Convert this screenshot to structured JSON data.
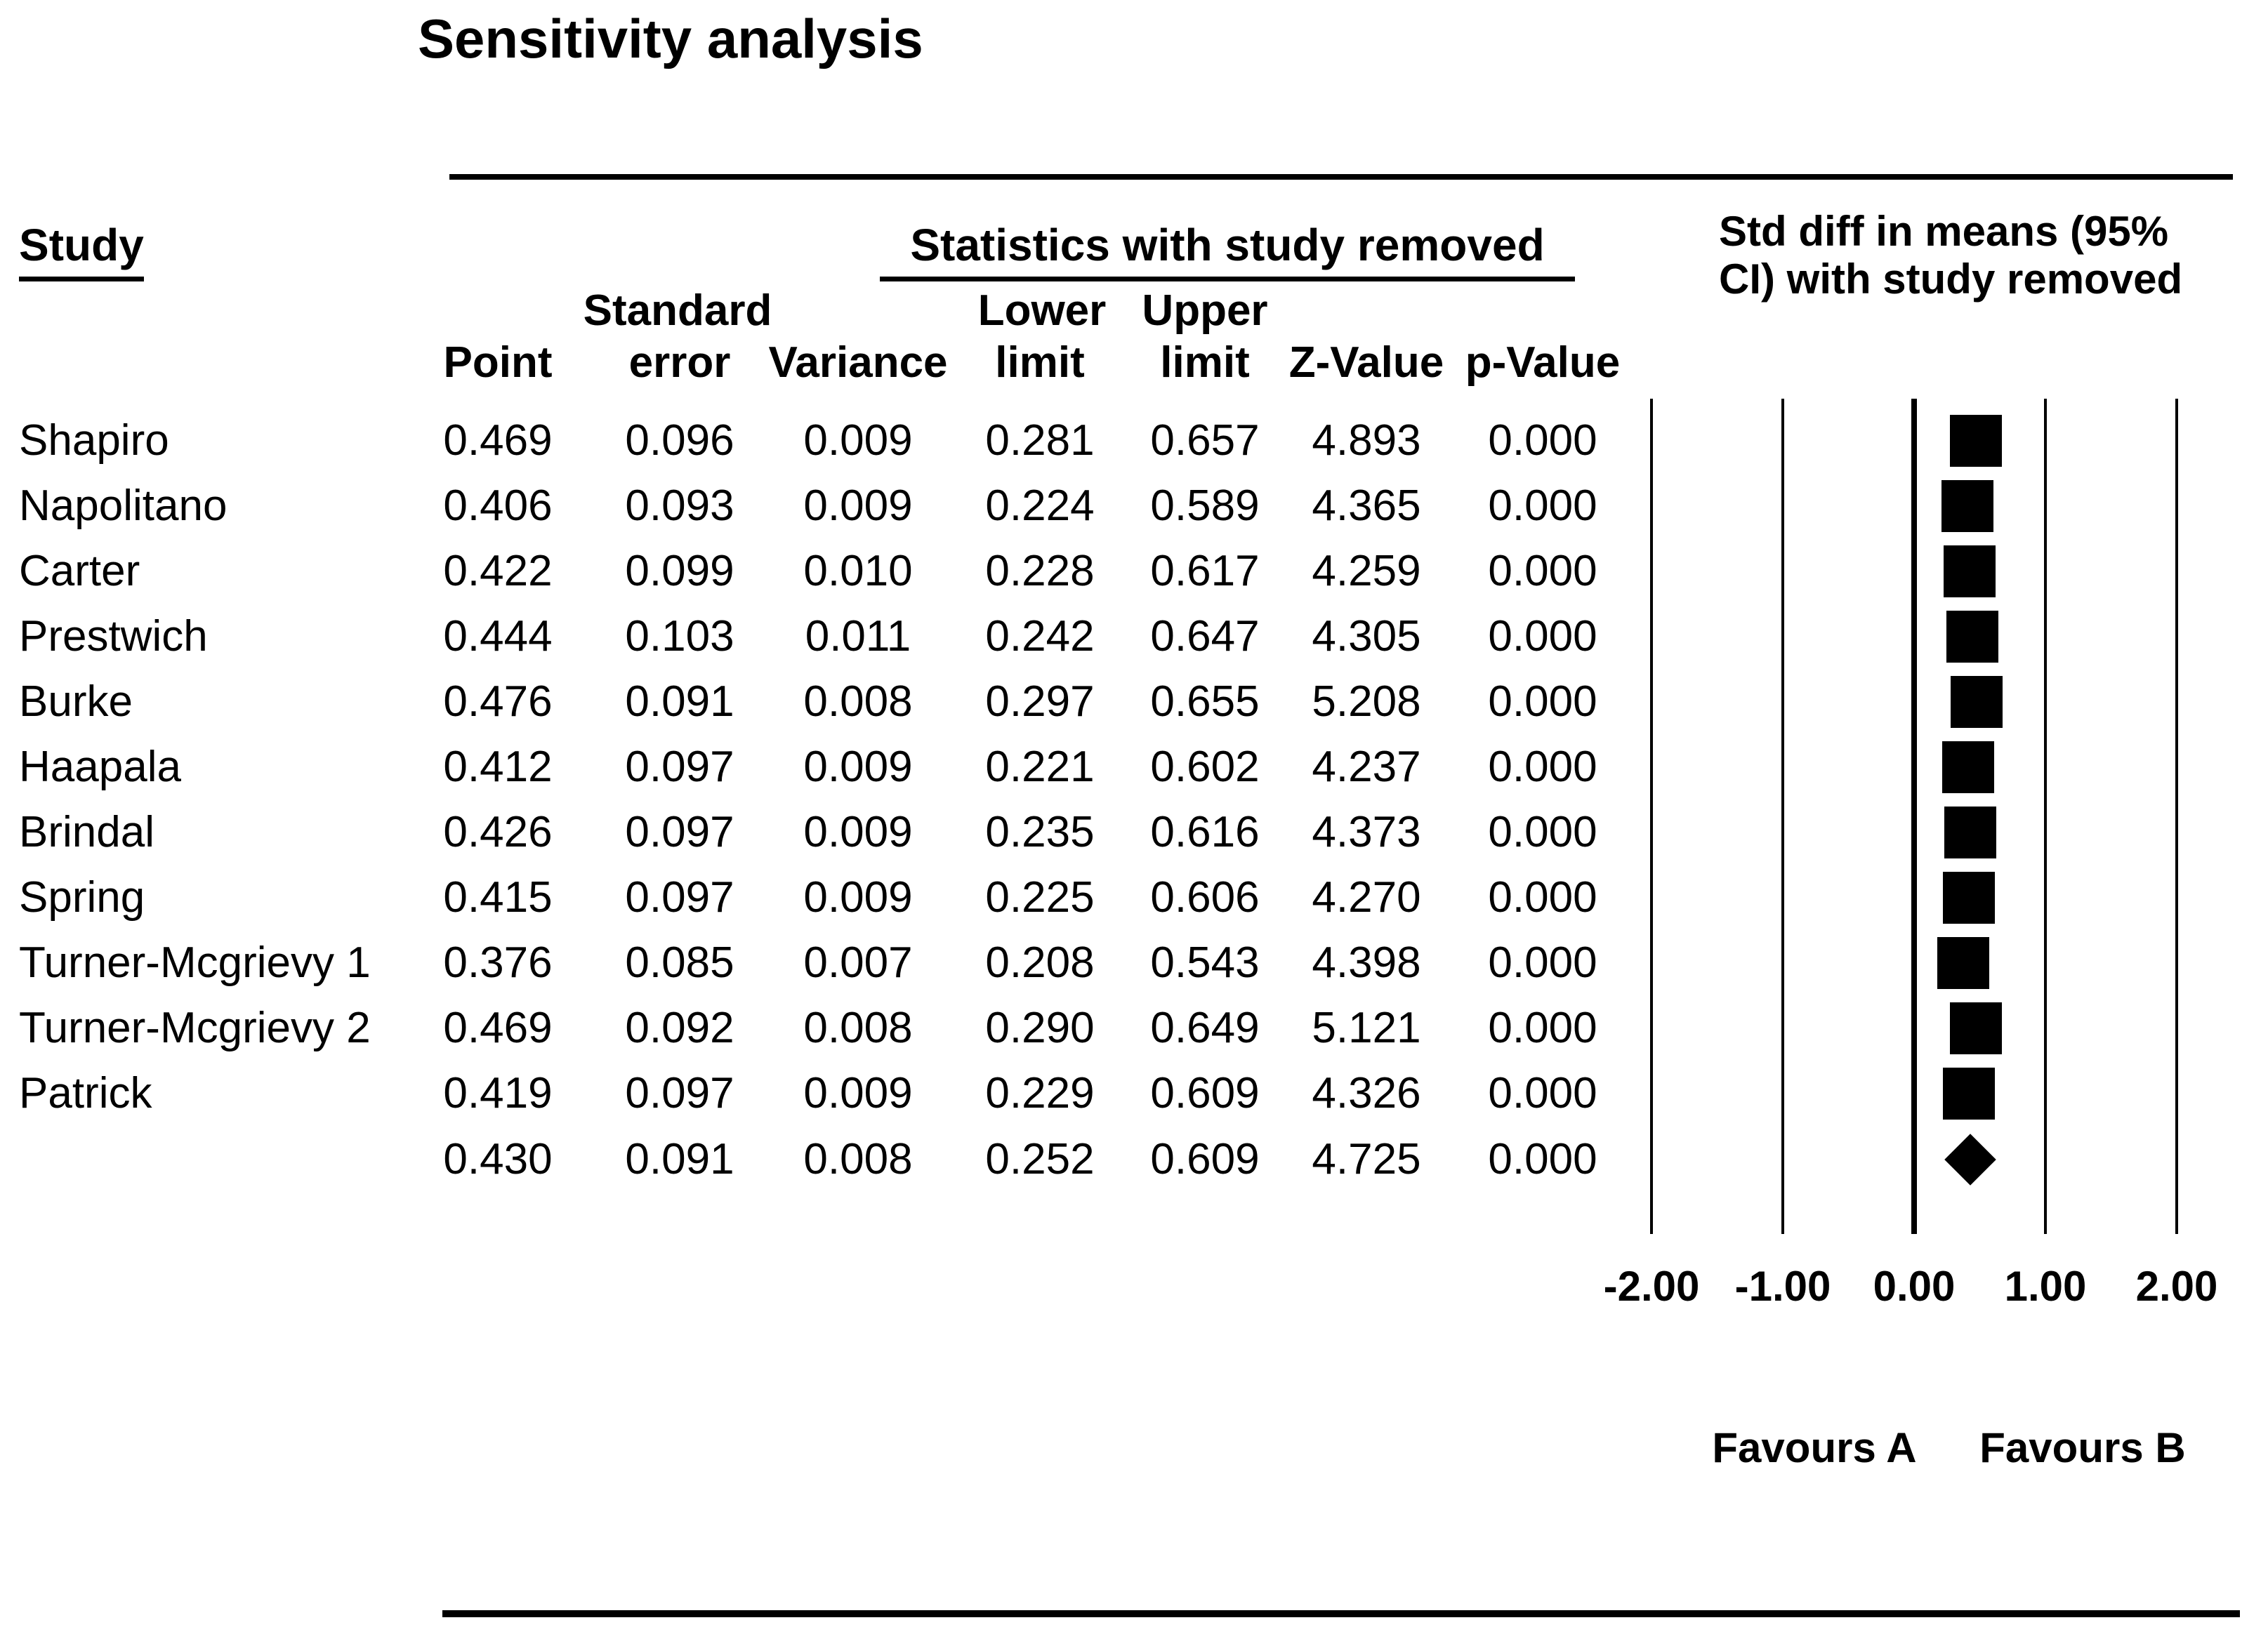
{
  "title": "Sensitivity analysis",
  "colors": {
    "ink": "#000000",
    "background": "#ffffff"
  },
  "table": {
    "study_header": "Study",
    "stats_group_header": "Statistics with study removed",
    "effect_header_line1": "Std diff in means (95%",
    "effect_header_line2": "CI) with study removed",
    "subheaders_row1": {
      "standard": "Standard",
      "lower": "Lower",
      "upper": "Upper"
    },
    "subheaders_row2": {
      "point": "Point",
      "error": "error",
      "variance": "Variance",
      "lower_limit": "limit",
      "upper_limit": "limit",
      "z_value": "Z-Value",
      "p_value": "p-Value"
    }
  },
  "axis": {
    "tick_labels": [
      "-2.00",
      "-1.00",
      "0.00",
      "1.00",
      "2.00"
    ],
    "favours_a": "Favours A",
    "favours_b": "Favours B"
  },
  "chart_data": {
    "type": "scatter",
    "variant": "forest-plot-sensitivity-analysis",
    "title": "Sensitivity analysis",
    "x_axis": {
      "label": "Std diff in means (95% CI) with study removed",
      "range": [
        -2,
        2
      ],
      "ticks": [
        -2,
        -1,
        0,
        1,
        2
      ],
      "tick_labels": [
        "-2.00",
        "-1.00",
        "0.00",
        "1.00",
        "2.00"
      ],
      "favours_left": "Favours A",
      "favours_right": "Favours B",
      "grid": true
    },
    "rows": [
      {
        "study": "Shapiro",
        "point": "0.469",
        "standard_error": "0.096",
        "variance": "0.009",
        "lower_limit": "0.281",
        "upper_limit": "0.657",
        "z_value": "4.893",
        "p_value": "0.000",
        "marker": "square"
      },
      {
        "study": "Napolitano",
        "point": "0.406",
        "standard_error": "0.093",
        "variance": "0.009",
        "lower_limit": "0.224",
        "upper_limit": "0.589",
        "z_value": "4.365",
        "p_value": "0.000",
        "marker": "square"
      },
      {
        "study": "Carter",
        "point": "0.422",
        "standard_error": "0.099",
        "variance": "0.010",
        "lower_limit": "0.228",
        "upper_limit": "0.617",
        "z_value": "4.259",
        "p_value": "0.000",
        "marker": "square"
      },
      {
        "study": "Prestwich",
        "point": "0.444",
        "standard_error": "0.103",
        "variance": "0.011",
        "lower_limit": "0.242",
        "upper_limit": "0.647",
        "z_value": "4.305",
        "p_value": "0.000",
        "marker": "square"
      },
      {
        "study": "Burke",
        "point": "0.476",
        "standard_error": "0.091",
        "variance": "0.008",
        "lower_limit": "0.297",
        "upper_limit": "0.655",
        "z_value": "5.208",
        "p_value": "0.000",
        "marker": "square"
      },
      {
        "study": "Haapala",
        "point": "0.412",
        "standard_error": "0.097",
        "variance": "0.009",
        "lower_limit": "0.221",
        "upper_limit": "0.602",
        "z_value": "4.237",
        "p_value": "0.000",
        "marker": "square"
      },
      {
        "study": "Brindal",
        "point": "0.426",
        "standard_error": "0.097",
        "variance": "0.009",
        "lower_limit": "0.235",
        "upper_limit": "0.616",
        "z_value": "4.373",
        "p_value": "0.000",
        "marker": "square"
      },
      {
        "study": "Spring",
        "point": "0.415",
        "standard_error": "0.097",
        "variance": "0.009",
        "lower_limit": "0.225",
        "upper_limit": "0.606",
        "z_value": "4.270",
        "p_value": "0.000",
        "marker": "square"
      },
      {
        "study": "Turner-Mcgrievy 1",
        "point": "0.376",
        "standard_error": "0.085",
        "variance": "0.007",
        "lower_limit": "0.208",
        "upper_limit": "0.543",
        "z_value": "4.398",
        "p_value": "0.000",
        "marker": "square"
      },
      {
        "study": "Turner-Mcgrievy 2",
        "point": "0.469",
        "standard_error": "0.092",
        "variance": "0.008",
        "lower_limit": "0.290",
        "upper_limit": "0.649",
        "z_value": "5.121",
        "p_value": "0.000",
        "marker": "square"
      },
      {
        "study": "Patrick",
        "point": "0.419",
        "standard_error": "0.097",
        "variance": "0.009",
        "lower_limit": "0.229",
        "upper_limit": "0.609",
        "z_value": "4.326",
        "p_value": "0.000",
        "marker": "square"
      },
      {
        "study": "",
        "point": "0.430",
        "standard_error": "0.091",
        "variance": "0.008",
        "lower_limit": "0.252",
        "upper_limit": "0.609",
        "z_value": "4.725",
        "p_value": "0.000",
        "marker": "diamond"
      }
    ]
  }
}
